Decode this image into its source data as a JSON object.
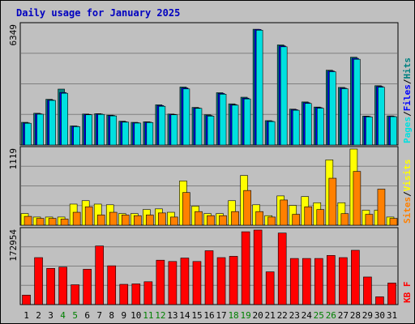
{
  "chart_data": {
    "type": "bar",
    "title": "Daily usage for January 2025",
    "categories": [
      "1",
      "2",
      "3",
      "4",
      "5",
      "6",
      "7",
      "8",
      "9",
      "10",
      "11",
      "12",
      "13",
      "14",
      "15",
      "16",
      "17",
      "18",
      "19",
      "20",
      "21",
      "22",
      "23",
      "24",
      "25",
      "26",
      "27",
      "28",
      "29",
      "30",
      "31"
    ],
    "weekend_days": [
      4,
      5,
      11,
      12,
      18,
      19,
      25,
      26
    ],
    "panels": [
      {
        "name": "hits_files_pages",
        "y_max_label": "6349",
        "ylim": [
          0,
          6349
        ],
        "legend": [
          {
            "label": "Pages",
            "color": "#00e0e0"
          },
          {
            "label": "/",
            "color": "#000000"
          },
          {
            "label": "Files",
            "color": "#0000ff"
          },
          {
            "label": "/",
            "color": "#000000"
          },
          {
            "label": "Hits",
            "color": "#008080"
          }
        ],
        "series": [
          {
            "name": "Hits",
            "color": "#008080",
            "values": [
              1200,
              1680,
              2420,
              2960,
              1010,
              1640,
              1660,
              1580,
              1260,
              1200,
              1230,
              2130,
              1640,
              3070,
              1990,
              1600,
              2770,
              2180,
              2530,
              6130,
              1290,
              5300,
              1900,
              2280,
              2010,
              3960,
              3050,
              4650,
              1530,
              3140,
              1540
            ]
          },
          {
            "name": "Files",
            "color": "#0000ff",
            "values": [
              1170,
              1650,
              2380,
              2780,
              990,
              1620,
              1640,
              1560,
              1230,
              1180,
              1210,
              2090,
              1620,
              3020,
              1960,
              1560,
              2730,
              2140,
              2480,
              6120,
              1260,
              5250,
              1870,
              2240,
              1980,
              3920,
              3010,
              4590,
              1510,
              3100,
              1520
            ]
          },
          {
            "name": "Pages",
            "color": "#00e0e0",
            "values": [
              1150,
              1630,
              2360,
              2740,
              970,
              1600,
              1620,
              1540,
              1210,
              1160,
              1190,
              2050,
              1600,
              2970,
              1940,
              1530,
              2690,
              2110,
              2440,
              6080,
              1240,
              5200,
              1840,
              2200,
              1950,
              3880,
              2980,
              4540,
              1490,
              3060,
              1500
            ]
          }
        ]
      },
      {
        "name": "visits_sites",
        "y_max_label": "1119",
        "ylim": [
          0,
          1119
        ],
        "legend": [
          {
            "label": "Sites",
            "color": "#ff8000"
          },
          {
            "label": "/",
            "color": "#000000"
          },
          {
            "label": "Visits",
            "color": "#ffff00"
          }
        ],
        "series": [
          {
            "name": "Visits",
            "color": "#ffff00",
            "values": [
              170,
              120,
              120,
              120,
              310,
              360,
              310,
              300,
              170,
              170,
              230,
              240,
              190,
              650,
              280,
              170,
              170,
              360,
              730,
              300,
              140,
              430,
              290,
              420,
              330,
              960,
              330,
              1119,
              220,
              220,
              120
            ]
          },
          {
            "name": "Sites",
            "color": "#ff8000",
            "values": [
              130,
              100,
              100,
              90,
              190,
              270,
              150,
              190,
              150,
              140,
              150,
              180,
              120,
              480,
              200,
              140,
              140,
              200,
              510,
              200,
              120,
              370,
              160,
              270,
              230,
              690,
              170,
              790,
              160,
              530,
              100
            ]
          }
        ]
      },
      {
        "name": "kbytes",
        "y_max_label": "172954",
        "ylim": [
          0,
          172954
        ],
        "legend": [
          {
            "label": "KB",
            "color": "#ff0000"
          },
          {
            "label": "F",
            "color": "#ff0000"
          }
        ],
        "series": [
          {
            "name": "KB F",
            "color": "#ff0000",
            "values": [
              22000,
              109000,
              84000,
              87000,
              46000,
              82000,
              136000,
              90000,
              47000,
              48000,
              53000,
              103000,
              100000,
              108000,
              100000,
              125000,
              109000,
              112000,
              169000,
              173000,
              76000,
              166000,
              107000,
              107000,
              107000,
              114000,
              109000,
              126000,
              64000,
              18000,
              50000
            ]
          }
        ]
      }
    ]
  }
}
